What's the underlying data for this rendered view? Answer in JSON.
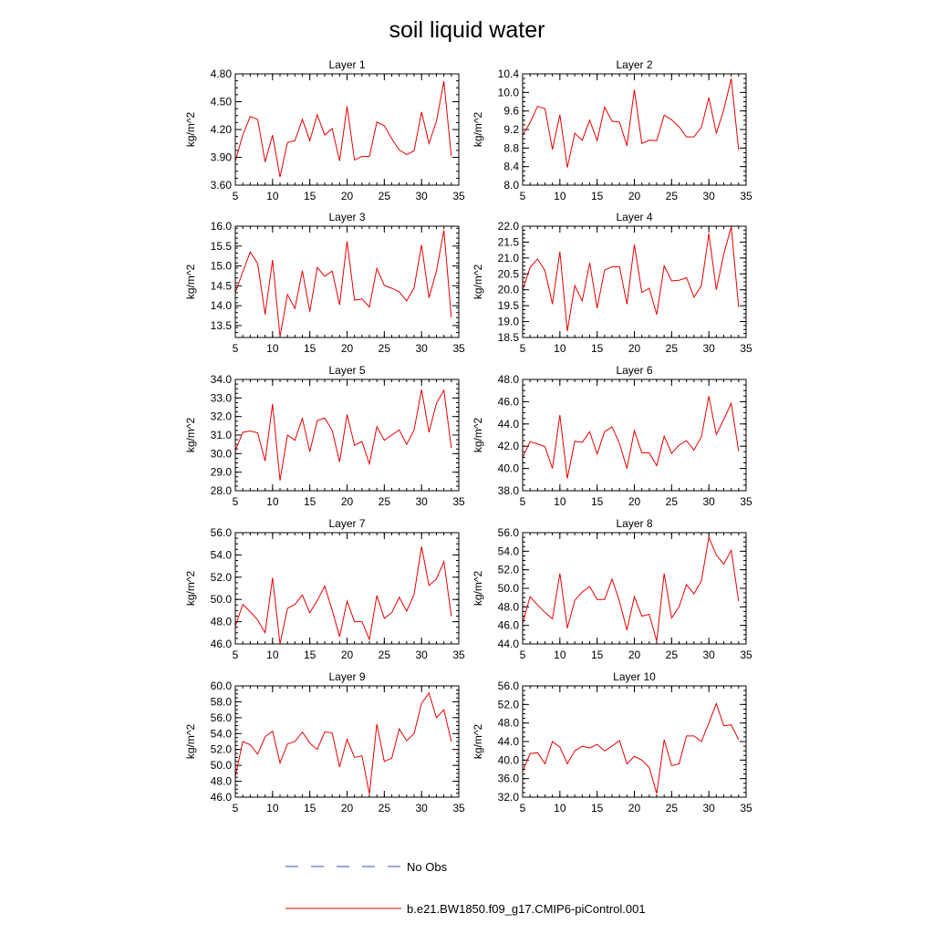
{
  "figure": {
    "title": "soil liquid water",
    "legend": {
      "obs_label": "No Obs",
      "model_label": "b.e21.BW1850.f09_g17.CMIP6-piControl.001",
      "obs_color": "#3c4fb4",
      "model_color": "#e60000"
    }
  },
  "chart_data": [
    {
      "type": "line",
      "title": "Layer 1",
      "ylabel": "kg/m^2",
      "xlim": [
        5,
        35
      ],
      "ylim": [
        3.6,
        4.8
      ],
      "xticks": [
        5,
        10,
        15,
        20,
        25,
        30,
        35
      ],
      "xticklabels": [
        "5",
        "10",
        "15",
        "20",
        "25",
        "30",
        "35"
      ],
      "yticks": [
        3.6,
        3.9,
        4.2,
        4.5,
        4.8
      ],
      "yticklabels": [
        "3.60",
        "3.90",
        "4.20",
        "4.50",
        "4.80"
      ],
      "series": [
        {
          "color": "#e60000",
          "x": [
            5,
            6,
            7,
            8,
            9,
            10,
            11,
            12,
            13,
            14,
            15,
            16,
            17,
            18,
            19,
            20,
            21,
            22,
            23,
            24,
            25,
            26,
            27,
            28,
            29,
            30,
            31,
            32,
            33,
            34
          ],
          "values": [
            3.86,
            4.14,
            4.34,
            4.31,
            3.85,
            4.14,
            3.69,
            4.06,
            4.08,
            4.31,
            4.08,
            4.36,
            4.14,
            4.21,
            3.86,
            4.45,
            3.87,
            3.91,
            3.91,
            4.28,
            4.24,
            4.1,
            3.98,
            3.93,
            3.97,
            4.39,
            4.05,
            4.29,
            4.72,
            3.91
          ]
        }
      ]
    },
    {
      "type": "line",
      "title": "Layer 2",
      "ylabel": "kg/m^2",
      "xlim": [
        5,
        35
      ],
      "ylim": [
        8.0,
        10.4
      ],
      "xticks": [
        5,
        10,
        15,
        20,
        25,
        30,
        35
      ],
      "xticklabels": [
        "5",
        "10",
        "15",
        "20",
        "25",
        "30",
        "35"
      ],
      "yticks": [
        8.0,
        8.4,
        8.8,
        9.2,
        9.6,
        10.0,
        10.4
      ],
      "yticklabels": [
        "8.0",
        "8.4",
        "8.8",
        "9.2",
        "9.6",
        "10.0",
        "10.4"
      ],
      "series": [
        {
          "color": "#e60000",
          "x": [
            5,
            6,
            7,
            8,
            9,
            10,
            11,
            12,
            13,
            14,
            15,
            16,
            17,
            18,
            19,
            20,
            21,
            22,
            23,
            24,
            25,
            26,
            27,
            28,
            29,
            30,
            31,
            32,
            33,
            34
          ],
          "values": [
            9.08,
            9.35,
            9.7,
            9.65,
            8.77,
            9.52,
            8.38,
            9.12,
            8.97,
            9.4,
            8.96,
            9.68,
            9.38,
            9.36,
            8.85,
            10.06,
            8.9,
            8.97,
            8.96,
            9.51,
            9.41,
            9.26,
            9.04,
            9.04,
            9.25,
            9.89,
            9.12,
            9.62,
            10.3,
            8.76
          ]
        }
      ]
    },
    {
      "type": "line",
      "title": "Layer 3",
      "ylabel": "kg/m^2",
      "xlim": [
        5,
        35
      ],
      "ylim": [
        13.2,
        16.0
      ],
      "xticks": [
        5,
        10,
        15,
        20,
        25,
        30,
        35
      ],
      "xticklabels": [
        "5",
        "10",
        "15",
        "20",
        "25",
        "30",
        "35"
      ],
      "yticks": [
        13.5,
        14.0,
        14.5,
        15.0,
        15.5,
        16.0
      ],
      "yticklabels": [
        "13.5",
        "14.0",
        "14.5",
        "15.0",
        "15.5",
        "16.0"
      ],
      "series": [
        {
          "color": "#e60000",
          "x": [
            5,
            6,
            7,
            8,
            9,
            10,
            11,
            12,
            13,
            14,
            15,
            16,
            17,
            18,
            19,
            20,
            21,
            22,
            23,
            24,
            25,
            26,
            27,
            28,
            29,
            30,
            31,
            32,
            33,
            34
          ],
          "values": [
            14.33,
            14.85,
            15.35,
            15.06,
            13.78,
            15.15,
            13.22,
            14.28,
            13.93,
            14.88,
            13.85,
            14.96,
            14.74,
            14.87,
            14.02,
            15.62,
            14.14,
            14.17,
            13.97,
            14.94,
            14.51,
            14.44,
            14.35,
            14.12,
            14.45,
            15.53,
            14.2,
            14.87,
            15.9,
            13.7
          ]
        }
      ]
    },
    {
      "type": "line",
      "title": "Layer 4",
      "ylabel": "kg/m^2",
      "xlim": [
        5,
        35
      ],
      "ylim": [
        18.5,
        22.0
      ],
      "xticks": [
        5,
        10,
        15,
        20,
        25,
        30,
        35
      ],
      "xticklabels": [
        "5",
        "10",
        "15",
        "20",
        "25",
        "30",
        "35"
      ],
      "yticks": [
        18.5,
        19.0,
        19.5,
        20.0,
        20.5,
        21.0,
        21.5,
        22.0
      ],
      "yticklabels": [
        "18.5",
        "19.0",
        "19.5",
        "20.0",
        "20.5",
        "21.0",
        "21.5",
        "22.0"
      ],
      "series": [
        {
          "color": "#e60000",
          "x": [
            5,
            6,
            7,
            8,
            9,
            10,
            11,
            12,
            13,
            14,
            15,
            16,
            17,
            18,
            19,
            20,
            21,
            22,
            23,
            24,
            25,
            26,
            27,
            28,
            29,
            30,
            31,
            32,
            33,
            34
          ],
          "values": [
            20.0,
            20.7,
            20.97,
            20.6,
            19.55,
            21.2,
            18.7,
            20.13,
            19.65,
            20.85,
            19.42,
            20.62,
            20.72,
            20.73,
            19.55,
            21.42,
            19.92,
            20.05,
            19.22,
            20.75,
            20.28,
            20.3,
            20.38,
            19.77,
            20.13,
            21.77,
            20.0,
            21.12,
            21.98,
            19.45
          ]
        }
      ]
    },
    {
      "type": "line",
      "title": "Layer 5",
      "ylabel": "kg/m^2",
      "xlim": [
        5,
        35
      ],
      "ylim": [
        28.0,
        34.0
      ],
      "xticks": [
        5,
        10,
        15,
        20,
        25,
        30,
        35
      ],
      "xticklabels": [
        "5",
        "10",
        "15",
        "20",
        "25",
        "30",
        "35"
      ],
      "yticks": [
        28.0,
        29.0,
        30.0,
        31.0,
        32.0,
        33.0,
        34.0
      ],
      "yticklabels": [
        "28.0",
        "29.0",
        "30.0",
        "31.0",
        "32.0",
        "33.0",
        "34.0"
      ],
      "series": [
        {
          "color": "#e60000",
          "x": [
            5,
            6,
            7,
            8,
            9,
            10,
            11,
            12,
            13,
            14,
            15,
            16,
            17,
            18,
            19,
            20,
            21,
            22,
            23,
            24,
            25,
            26,
            27,
            28,
            29,
            30,
            31,
            32,
            33,
            34
          ],
          "values": [
            30.15,
            31.15,
            31.22,
            31.12,
            29.6,
            32.68,
            28.55,
            31.0,
            30.72,
            31.9,
            30.1,
            31.78,
            31.92,
            31.25,
            29.55,
            32.1,
            30.45,
            30.65,
            29.45,
            31.45,
            30.72,
            31.0,
            31.28,
            30.5,
            31.28,
            33.45,
            31.15,
            32.72,
            33.42,
            30.3
          ]
        }
      ]
    },
    {
      "type": "line",
      "title": "Layer 6",
      "ylabel": "kg/m^2",
      "xlim": [
        5,
        35
      ],
      "ylim": [
        38.0,
        48.0
      ],
      "xticks": [
        5,
        10,
        15,
        20,
        25,
        30,
        35
      ],
      "xticklabels": [
        "5",
        "10",
        "15",
        "20",
        "25",
        "30",
        "35"
      ],
      "yticks": [
        38.0,
        40.0,
        42.0,
        44.0,
        46.0,
        48.0
      ],
      "yticklabels": [
        "38.0",
        "40.0",
        "42.0",
        "44.0",
        "46.0",
        "48.0"
      ],
      "series": [
        {
          "color": "#e60000",
          "x": [
            5,
            6,
            7,
            8,
            9,
            10,
            11,
            12,
            13,
            14,
            15,
            16,
            17,
            18,
            19,
            20,
            21,
            22,
            23,
            24,
            25,
            26,
            27,
            28,
            29,
            30,
            31,
            32,
            33,
            34
          ],
          "values": [
            41.0,
            42.4,
            42.2,
            41.95,
            40.0,
            44.8,
            39.1,
            42.45,
            42.35,
            43.3,
            41.3,
            43.3,
            43.75,
            42.25,
            40.0,
            43.4,
            41.4,
            41.4,
            40.25,
            42.9,
            41.35,
            42.1,
            42.5,
            41.65,
            42.85,
            46.5,
            43.05,
            44.4,
            45.85,
            41.55
          ]
        }
      ]
    },
    {
      "type": "line",
      "title": "Layer 7",
      "ylabel": "kg/m^2",
      "xlim": [
        5,
        35
      ],
      "ylim": [
        46.0,
        56.0
      ],
      "xticks": [
        5,
        10,
        15,
        20,
        25,
        30,
        35
      ],
      "xticklabels": [
        "5",
        "10",
        "15",
        "20",
        "25",
        "30",
        "35"
      ],
      "yticks": [
        46.0,
        48.0,
        50.0,
        52.0,
        54.0,
        56.0
      ],
      "yticklabels": [
        "46.0",
        "48.0",
        "50.0",
        "52.0",
        "54.0",
        "56.0"
      ],
      "series": [
        {
          "color": "#e60000",
          "x": [
            5,
            6,
            7,
            8,
            9,
            10,
            11,
            12,
            13,
            14,
            15,
            16,
            17,
            18,
            19,
            20,
            21,
            22,
            23,
            24,
            25,
            26,
            27,
            28,
            29,
            30,
            31,
            32,
            33,
            34
          ],
          "values": [
            47.6,
            49.55,
            48.9,
            48.15,
            47.0,
            51.95,
            46.0,
            49.2,
            49.55,
            50.4,
            48.8,
            49.9,
            51.2,
            49.05,
            46.65,
            49.85,
            48.0,
            48.0,
            46.4,
            50.35,
            48.3,
            48.8,
            50.2,
            48.95,
            50.45,
            54.75,
            51.25,
            51.85,
            53.4,
            48.5
          ]
        }
      ]
    },
    {
      "type": "line",
      "title": "Layer 8",
      "ylabel": "kg/m^2",
      "xlim": [
        5,
        35
      ],
      "ylim": [
        44.0,
        56.0
      ],
      "xticks": [
        5,
        10,
        15,
        20,
        25,
        30,
        35
      ],
      "xticklabels": [
        "5",
        "10",
        "15",
        "20",
        "25",
        "30",
        "35"
      ],
      "yticks": [
        44.0,
        46.0,
        48.0,
        50.0,
        52.0,
        54.0,
        56.0
      ],
      "yticklabels": [
        "44.0",
        "46.0",
        "48.0",
        "50.0",
        "52.0",
        "54.0",
        "56.0"
      ],
      "series": [
        {
          "color": "#e60000",
          "x": [
            5,
            6,
            7,
            8,
            9,
            10,
            11,
            12,
            13,
            14,
            15,
            16,
            17,
            18,
            19,
            20,
            21,
            22,
            23,
            24,
            25,
            26,
            27,
            28,
            29,
            30,
            31,
            32,
            33,
            34
          ],
          "values": [
            46.2,
            49.1,
            48.2,
            47.4,
            46.7,
            51.6,
            45.7,
            48.7,
            49.6,
            50.2,
            48.8,
            48.8,
            51.0,
            48.6,
            45.5,
            49.1,
            47.0,
            47.2,
            44.3,
            51.6,
            46.8,
            48.0,
            50.4,
            49.4,
            50.8,
            55.5,
            53.6,
            52.6,
            54.1,
            48.6
          ]
        }
      ]
    },
    {
      "type": "line",
      "title": "Layer 9",
      "ylabel": "kg/m^2",
      "xlim": [
        5,
        35
      ],
      "ylim": [
        46.0,
        60.0
      ],
      "xticks": [
        5,
        10,
        15,
        20,
        25,
        30,
        35
      ],
      "xticklabels": [
        "5",
        "10",
        "15",
        "20",
        "25",
        "30",
        "35"
      ],
      "yticks": [
        46.0,
        48.0,
        50.0,
        52.0,
        54.0,
        56.0,
        58.0,
        60.0
      ],
      "yticklabels": [
        "46.0",
        "48.0",
        "50.0",
        "52.0",
        "54.0",
        "56.0",
        "58.0",
        "60.0"
      ],
      "series": [
        {
          "color": "#e60000",
          "x": [
            5,
            6,
            7,
            8,
            9,
            10,
            11,
            12,
            13,
            14,
            15,
            16,
            17,
            18,
            19,
            20,
            21,
            22,
            23,
            24,
            25,
            26,
            27,
            28,
            29,
            30,
            31,
            32,
            33,
            34
          ],
          "values": [
            48.6,
            53.0,
            52.6,
            51.4,
            53.6,
            54.3,
            50.3,
            52.7,
            53.0,
            54.2,
            52.8,
            52.0,
            54.2,
            54.1,
            49.8,
            53.3,
            51.0,
            51.2,
            46.4,
            55.2,
            50.5,
            50.9,
            54.6,
            53.1,
            54.0,
            57.8,
            59.1,
            56.0,
            57.0,
            53.0
          ]
        }
      ]
    },
    {
      "type": "line",
      "title": "Layer 10",
      "ylabel": "kg/m^2",
      "xlim": [
        5,
        35
      ],
      "ylim": [
        32.0,
        56.0
      ],
      "xticks": [
        5,
        10,
        15,
        20,
        25,
        30,
        35
      ],
      "xticklabels": [
        "5",
        "10",
        "15",
        "20",
        "25",
        "30",
        "35"
      ],
      "yticks": [
        32.0,
        36.0,
        40.0,
        44.0,
        48.0,
        52.0,
        56.0
      ],
      "yticklabels": [
        "32.0",
        "36.0",
        "40.0",
        "44.0",
        "48.0",
        "52.0",
        "56.0"
      ],
      "series": [
        {
          "color": "#e60000",
          "x": [
            5,
            6,
            7,
            8,
            9,
            10,
            11,
            12,
            13,
            14,
            15,
            16,
            17,
            18,
            19,
            20,
            21,
            22,
            23,
            24,
            25,
            26,
            27,
            28,
            29,
            30,
            31,
            32,
            33,
            34
          ],
          "values": [
            37.6,
            41.4,
            41.6,
            39.2,
            44.0,
            42.8,
            39.2,
            42.0,
            43.0,
            42.6,
            43.4,
            42.0,
            43.0,
            44.2,
            39.2,
            40.8,
            40.0,
            38.4,
            32.8,
            44.4,
            38.8,
            39.2,
            45.2,
            45.2,
            44.0,
            48.0,
            52.2,
            47.4,
            47.6,
            44.4
          ]
        }
      ]
    }
  ]
}
